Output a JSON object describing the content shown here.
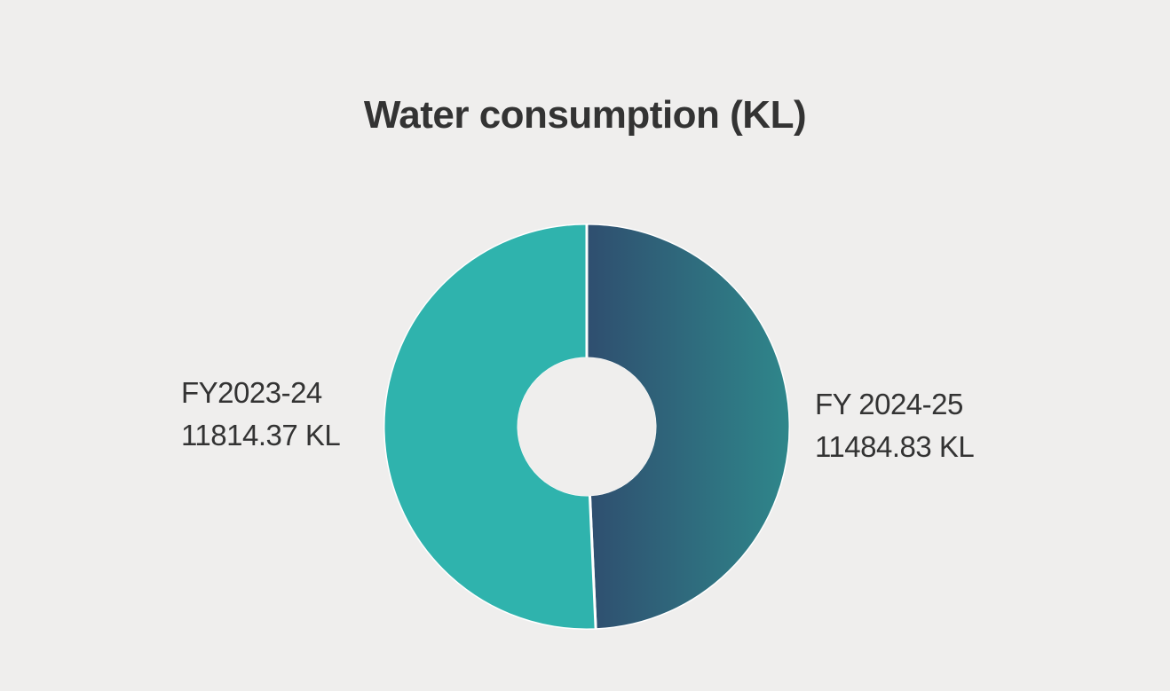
{
  "chart_data": {
    "type": "pie",
    "title": "Water consumption (KL)",
    "unit": "KL",
    "donut": true,
    "slices": [
      {
        "label": "FY 2024-25",
        "value": 11484.83,
        "value_text": "11484.83 KL",
        "color": "#2f4e6f",
        "color_end": "#2f878b"
      },
      {
        "label": "FY2023-24",
        "value": 11814.37,
        "value_text": "11814.37 KL",
        "color": "#2fb3ad"
      }
    ],
    "legend": "none"
  },
  "colors": {
    "background": "#efeeed",
    "text": "#333333",
    "slice_separator": "#ffffff"
  }
}
